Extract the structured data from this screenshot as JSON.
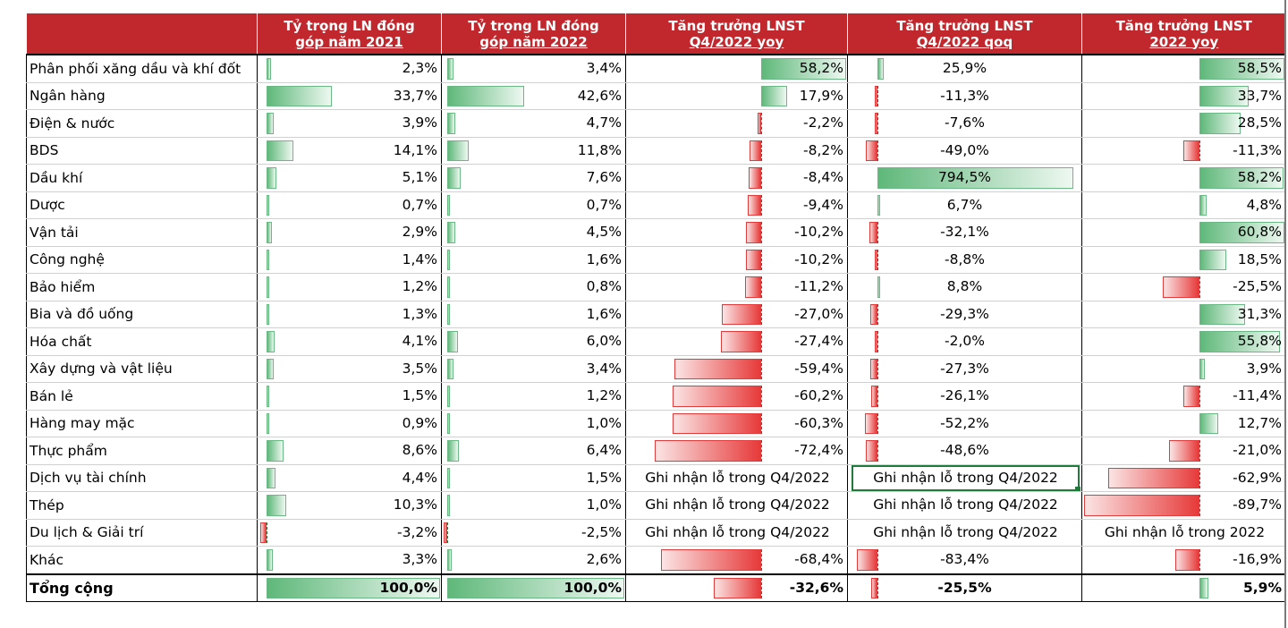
{
  "chart_data": {
    "type": "table",
    "columns": [
      {
        "key": "share2021",
        "l1": "Tỷ trọng LN đóng",
        "l2": "góp năm 2021",
        "axis": 0.04,
        "scale": 0.0105,
        "align": "right"
      },
      {
        "key": "share2022",
        "l1": "Tỷ trọng LN đóng",
        "l2": "góp năm 2022",
        "axis": 0.02,
        "scale": 0.0098,
        "align": "right"
      },
      {
        "key": "q4yoy",
        "l1": "Tăng trưởng LNST",
        "l2": "Q4/2022 yoy",
        "axis": 0.6,
        "scale": 0.0066,
        "align": "right"
      },
      {
        "key": "q4qoq",
        "l1": "Tăng trưởng LNST",
        "l2": "Q4/2022 qoq",
        "axis": 0.12,
        "scale": 0.00105,
        "align": "center"
      },
      {
        "key": "yoy2022",
        "l1": "Tăng trưởng LNST",
        "l2": "2022 yoy",
        "axis": 0.565,
        "scale": 0.0071,
        "align": "right"
      }
    ],
    "rows": [
      {
        "name": "Phân phối xăng dầu và khí đốt",
        "values": [
          2.3,
          3.4,
          58.2,
          25.9,
          58.5
        ],
        "text": [
          "2,3%",
          "3,4%",
          "58,2%",
          "25,9%",
          "58,5%"
        ]
      },
      {
        "name": "Ngân hàng",
        "values": [
          33.7,
          42.6,
          17.9,
          -11.3,
          33.7
        ],
        "text": [
          "33,7%",
          "42,6%",
          "17,9%",
          "-11,3%",
          "33,7%"
        ]
      },
      {
        "name": "Điện & nước",
        "values": [
          3.9,
          4.7,
          -2.2,
          -7.6,
          28.5
        ],
        "text": [
          "3,9%",
          "4,7%",
          "-2,2%",
          "-7,6%",
          "28,5%"
        ]
      },
      {
        "name": "BDS",
        "values": [
          14.1,
          11.8,
          -8.2,
          -49.0,
          -11.3
        ],
        "text": [
          "14,1%",
          "11,8%",
          "-8,2%",
          "-49,0%",
          "-11,3%"
        ]
      },
      {
        "name": "Dầu khí",
        "values": [
          5.1,
          7.6,
          -8.4,
          794.5,
          58.2
        ],
        "text": [
          "5,1%",
          "7,6%",
          "-8,4%",
          "794,5%",
          "58,2%"
        ]
      },
      {
        "name": "Dược",
        "values": [
          0.7,
          0.7,
          -9.4,
          6.7,
          4.8
        ],
        "text": [
          "0,7%",
          "0,7%",
          "-9,4%",
          "6,7%",
          "4,8%"
        ]
      },
      {
        "name": "Vận tải",
        "values": [
          2.9,
          4.5,
          -10.2,
          -32.1,
          60.8
        ],
        "text": [
          "2,9%",
          "4,5%",
          "-10,2%",
          "-32,1%",
          "60,8%"
        ]
      },
      {
        "name": "Công nghệ",
        "values": [
          1.4,
          1.6,
          -10.2,
          -8.8,
          18.5
        ],
        "text": [
          "1,4%",
          "1,6%",
          "-10,2%",
          "-8,8%",
          "18,5%"
        ]
      },
      {
        "name": "Bảo hiểm",
        "values": [
          1.2,
          0.8,
          -11.2,
          8.8,
          -25.5
        ],
        "text": [
          "1,2%",
          "0,8%",
          "-11,2%",
          "8,8%",
          "-25,5%"
        ]
      },
      {
        "name": "Bia và đồ uống",
        "values": [
          1.3,
          1.6,
          -27.0,
          -29.3,
          31.3
        ],
        "text": [
          "1,3%",
          "1,6%",
          "-27,0%",
          "-29,3%",
          "31,3%"
        ]
      },
      {
        "name": "Hóa chất",
        "values": [
          4.1,
          6.0,
          -27.4,
          -2.0,
          55.8
        ],
        "text": [
          "4,1%",
          "6,0%",
          "-27,4%",
          "-2,0%",
          "55,8%"
        ]
      },
      {
        "name": "Xây dựng và vật liệu",
        "values": [
          3.5,
          3.4,
          -59.4,
          -27.3,
          3.9
        ],
        "text": [
          "3,5%",
          "3,4%",
          "-59,4%",
          "-27,3%",
          "3,9%"
        ]
      },
      {
        "name": "Bán lẻ",
        "values": [
          1.5,
          1.2,
          -60.2,
          -26.1,
          -11.4
        ],
        "text": [
          "1,5%",
          "1,2%",
          "-60,2%",
          "-26,1%",
          "-11,4%"
        ]
      },
      {
        "name": "Hàng may mặc",
        "values": [
          0.9,
          1.0,
          -60.3,
          -52.2,
          12.7
        ],
        "text": [
          "0,9%",
          "1,0%",
          "-60,3%",
          "-52,2%",
          "12,7%"
        ]
      },
      {
        "name": "Thực phẩm",
        "values": [
          8.6,
          6.4,
          -72.4,
          -48.6,
          -21.0
        ],
        "text": [
          "8,6%",
          "6,4%",
          "-72,4%",
          "-48,6%",
          "-21,0%"
        ]
      },
      {
        "name": "Dịch vụ tài chính",
        "values": [
          4.4,
          1.5,
          null,
          null,
          -62.9
        ],
        "text": [
          "4,4%",
          "1,5%",
          "Ghi nhận lỗ trong Q4/2022",
          "Ghi nhận lỗ trong Q4/2022",
          "-62,9%"
        ]
      },
      {
        "name": "Thép",
        "values": [
          10.3,
          1.0,
          null,
          null,
          -89.7
        ],
        "text": [
          "10,3%",
          "1,0%",
          "Ghi nhận lỗ trong Q4/2022",
          "Ghi nhận lỗ trong Q4/2022",
          "-89,7%"
        ]
      },
      {
        "name": "Du lịch & Giải trí",
        "values": [
          -3.2,
          -2.5,
          null,
          null,
          null
        ],
        "text": [
          "-3,2%",
          "-2,5%",
          "Ghi nhận lỗ trong Q4/2022",
          "Ghi nhận lỗ trong Q4/2022",
          "Ghi nhận lỗ trong 2022"
        ]
      },
      {
        "name": "Khác",
        "values": [
          3.3,
          2.6,
          -68.4,
          -83.4,
          -16.9
        ],
        "text": [
          "3,3%",
          "2,6%",
          "-68,4%",
          "-83,4%",
          "-16,9%"
        ]
      }
    ],
    "total": {
      "name": "Tổng cộng",
      "values": [
        100.0,
        100.0,
        -32.6,
        -25.5,
        5.9
      ],
      "text": [
        "100,0%",
        "100,0%",
        "-32,6%",
        "-25,5%",
        "5,9%"
      ]
    },
    "colors": {
      "header_bg": "#c0282d",
      "header_text": "#ffffff",
      "positive_bar": "#5fb87a",
      "negative_bar": "#e73a3a"
    },
    "selected_cell": {
      "row": "Dịch vụ tài chính",
      "column": "q4qoq"
    }
  }
}
